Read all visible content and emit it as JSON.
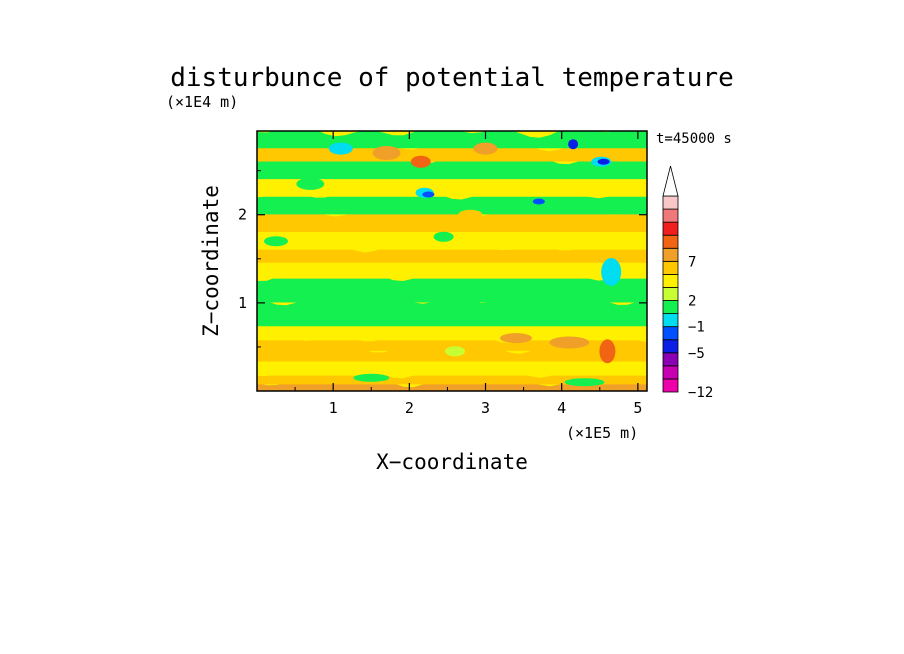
{
  "chart_data": {
    "type": "heatmap",
    "title": "disturbunce of potential temperature",
    "xlabel": "X−coordinate",
    "ylabel": "Z−coordinate",
    "x_unit": "(×1E5 m)",
    "y_unit": "(×1E4 m)",
    "time_label": "t=45000 s",
    "xlim": [
      0,
      5.12
    ],
    "ylim": [
      0,
      2.95
    ],
    "x_ticks": [
      {
        "value": 1,
        "label": "1"
      },
      {
        "value": 2,
        "label": "2"
      },
      {
        "value": 3,
        "label": "3"
      },
      {
        "value": 4,
        "label": "4"
      },
      {
        "value": 5,
        "label": "5"
      }
    ],
    "y_ticks": [
      {
        "value": 1,
        "label": "1"
      },
      {
        "value": 2,
        "label": "2"
      }
    ],
    "colorbar": {
      "levels": [
        {
          "color": "#ee00aa"
        },
        {
          "color": "#c800b4"
        },
        {
          "color": "#8c00b4"
        },
        {
          "color": "#0a1ee6"
        },
        {
          "color": "#0050ff"
        },
        {
          "color": "#00dcf0"
        },
        {
          "color": "#14f050"
        },
        {
          "color": "#c8ff32"
        },
        {
          "color": "#fff000"
        },
        {
          "color": "#ffc800"
        },
        {
          "color": "#f0a028"
        },
        {
          "color": "#f06414"
        },
        {
          "color": "#f01e1e"
        },
        {
          "color": "#f07878"
        },
        {
          "color": "#f8c8c8"
        },
        {
          "color": "#ffffff"
        }
      ],
      "tick_labels": [
        {
          "label": "−12",
          "value": -12
        },
        {
          "label": "−5",
          "value": -5
        },
        {
          "label": "−1",
          "value": -1
        },
        {
          "label": "2",
          "value": 2
        },
        {
          "label": "7",
          "value": 7
        }
      ]
    }
  }
}
